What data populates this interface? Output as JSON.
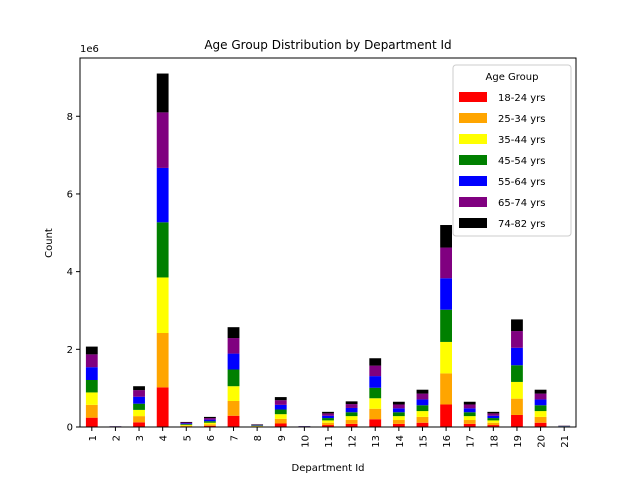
{
  "chart_data": {
    "type": "bar",
    "stacked": true,
    "title": "Age Group Distribution by Department Id",
    "xlabel": "Department Id",
    "ylabel": "Count",
    "y_scale_label": "1e6",
    "ylim": [
      0,
      9.5
    ],
    "y_ticks": [
      0,
      2,
      4,
      6,
      8
    ],
    "y_unit_multiplier": 1000000,
    "legend": {
      "title": "Age Group",
      "placement": "top-right"
    },
    "categories": [
      "1",
      "2",
      "3",
      "4",
      "5",
      "6",
      "7",
      "8",
      "9",
      "10",
      "11",
      "12",
      "13",
      "14",
      "15",
      "16",
      "17",
      "18",
      "19",
      "20",
      "21"
    ],
    "series": [
      {
        "name": "18-24 yrs",
        "color": "#ff0000",
        "values": [
          0.24,
          0.003,
          0.12,
          1.02,
          0.015,
          0.03,
          0.29,
          0.01,
          0.09,
          0.003,
          0.05,
          0.08,
          0.2,
          0.08,
          0.11,
          0.58,
          0.08,
          0.05,
          0.31,
          0.11,
          0.005
        ]
      },
      {
        "name": "25-34 yrs",
        "color": "#ffa500",
        "values": [
          0.33,
          0.003,
          0.16,
          1.4,
          0.02,
          0.04,
          0.38,
          0.01,
          0.12,
          0.004,
          0.06,
          0.1,
          0.27,
          0.1,
          0.15,
          0.8,
          0.1,
          0.06,
          0.42,
          0.15,
          0.005
        ]
      },
      {
        "name": "35-44 yrs",
        "color": "#ffff00",
        "values": [
          0.32,
          0.003,
          0.16,
          1.43,
          0.02,
          0.04,
          0.38,
          0.01,
          0.12,
          0.004,
          0.06,
          0.1,
          0.27,
          0.1,
          0.15,
          0.81,
          0.1,
          0.06,
          0.43,
          0.15,
          0.005
        ]
      },
      {
        "name": "45-54 yrs",
        "color": "#008000",
        "values": [
          0.32,
          0.003,
          0.16,
          1.42,
          0.02,
          0.04,
          0.43,
          0.01,
          0.12,
          0.004,
          0.06,
          0.1,
          0.27,
          0.1,
          0.15,
          0.83,
          0.1,
          0.06,
          0.43,
          0.15,
          0.005
        ]
      },
      {
        "name": "55-64 yrs",
        "color": "#0000ff",
        "values": [
          0.33,
          0.003,
          0.18,
          1.4,
          0.02,
          0.04,
          0.41,
          0.01,
          0.12,
          0.004,
          0.06,
          0.11,
          0.3,
          0.1,
          0.15,
          0.81,
          0.1,
          0.06,
          0.45,
          0.15,
          0.005
        ]
      },
      {
        "name": "65-74 yrs",
        "color": "#800080",
        "values": [
          0.33,
          0.003,
          0.17,
          1.43,
          0.02,
          0.04,
          0.4,
          0.01,
          0.12,
          0.004,
          0.06,
          0.1,
          0.27,
          0.1,
          0.15,
          0.79,
          0.1,
          0.06,
          0.43,
          0.15,
          0.005
        ]
      },
      {
        "name": "74-82 yrs",
        "color": "#000000",
        "values": [
          0.2,
          0.002,
          0.1,
          1.0,
          0.015,
          0.03,
          0.28,
          0.01,
          0.08,
          0.002,
          0.04,
          0.07,
          0.19,
          0.07,
          0.1,
          0.58,
          0.07,
          0.04,
          0.3,
          0.1,
          0.005
        ]
      }
    ],
    "grid": false
  }
}
